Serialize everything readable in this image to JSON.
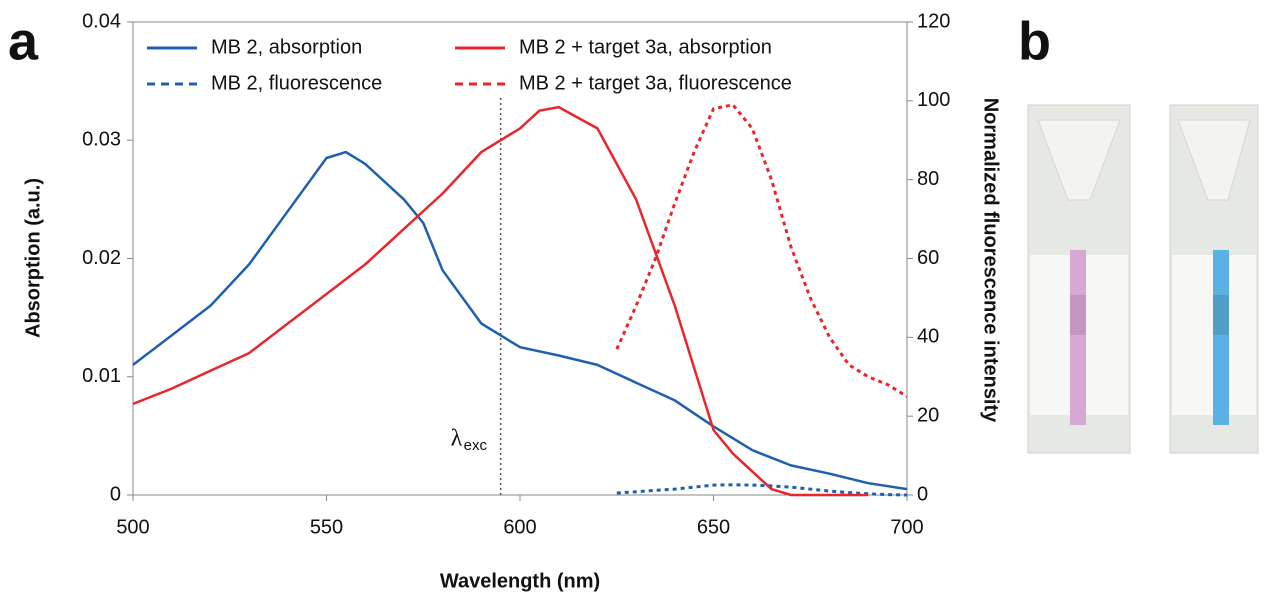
{
  "chart_data": {
    "type": "line",
    "panel_labels": [
      "a",
      "b"
    ],
    "xlabel": "Wavelength (nm)",
    "ylabel": "Absorption (a.u.)",
    "y2label": "Normalized fluorescence intensity",
    "xlim": [
      500,
      700
    ],
    "xticks": [
      500,
      550,
      600,
      650,
      700
    ],
    "ylim": [
      0,
      0.04
    ],
    "yticks": [
      0,
      0.01,
      0.02,
      0.03,
      0.04
    ],
    "y2lim": [
      0,
      120
    ],
    "y2ticks": [
      0,
      20,
      40,
      60,
      80,
      100,
      120
    ],
    "legend": "top",
    "annotation": {
      "symbol": "λ",
      "subscript": "exc",
      "x": 595
    },
    "series": [
      {
        "name": "MB 2, absorption",
        "color": "#1f5fae",
        "style": "solid",
        "axis": "y",
        "x": [
          500,
          510,
          520,
          530,
          540,
          550,
          555,
          560,
          570,
          575,
          580,
          590,
          600,
          610,
          620,
          630,
          640,
          650,
          660,
          670,
          680,
          690,
          700
        ],
        "values": [
          0.011,
          0.0135,
          0.016,
          0.0195,
          0.024,
          0.0285,
          0.029,
          0.028,
          0.025,
          0.023,
          0.019,
          0.0145,
          0.0125,
          0.0118,
          0.011,
          0.0095,
          0.008,
          0.0058,
          0.0038,
          0.0025,
          0.0018,
          0.001,
          0.0005
        ]
      },
      {
        "name": "MB 2, fluorescence",
        "color": "#1f5fae",
        "style": "dashed",
        "axis": "y2",
        "x": [
          625,
          630,
          635,
          640,
          645,
          650,
          655,
          660,
          665,
          670,
          675,
          680,
          685,
          690,
          695,
          700
        ],
        "values": [
          0.5,
          0.8,
          1.2,
          1.5,
          2,
          2.5,
          2.6,
          2.5,
          2.3,
          2,
          1.5,
          1,
          0.6,
          0.3,
          0.1,
          0
        ]
      },
      {
        "name": "MB 2 + target 3a, absorption",
        "color": "#e8262b",
        "style": "solid",
        "axis": "y",
        "x": [
          500,
          510,
          520,
          530,
          540,
          550,
          560,
          570,
          580,
          590,
          600,
          605,
          610,
          620,
          630,
          640,
          650,
          655,
          660,
          665,
          670,
          680,
          690
        ],
        "values": [
          0.0077,
          0.009,
          0.0105,
          0.012,
          0.0145,
          0.017,
          0.0195,
          0.0225,
          0.0255,
          0.029,
          0.031,
          0.0325,
          0.0328,
          0.031,
          0.025,
          0.016,
          0.0055,
          0.0035,
          0.002,
          0.0005,
          0,
          0,
          0
        ]
      },
      {
        "name": "MB 2 + target 3a, fluorescence",
        "color": "#e8262b",
        "style": "dashed",
        "axis": "y2",
        "x": [
          625,
          630,
          635,
          640,
          645,
          650,
          655,
          660,
          665,
          670,
          675,
          680,
          685,
          690,
          695,
          700
        ],
        "values": [
          37,
          48,
          60,
          74,
          87,
          98,
          99,
          93,
          80,
          63,
          50,
          40,
          33,
          30,
          28,
          25
        ]
      }
    ]
  }
}
